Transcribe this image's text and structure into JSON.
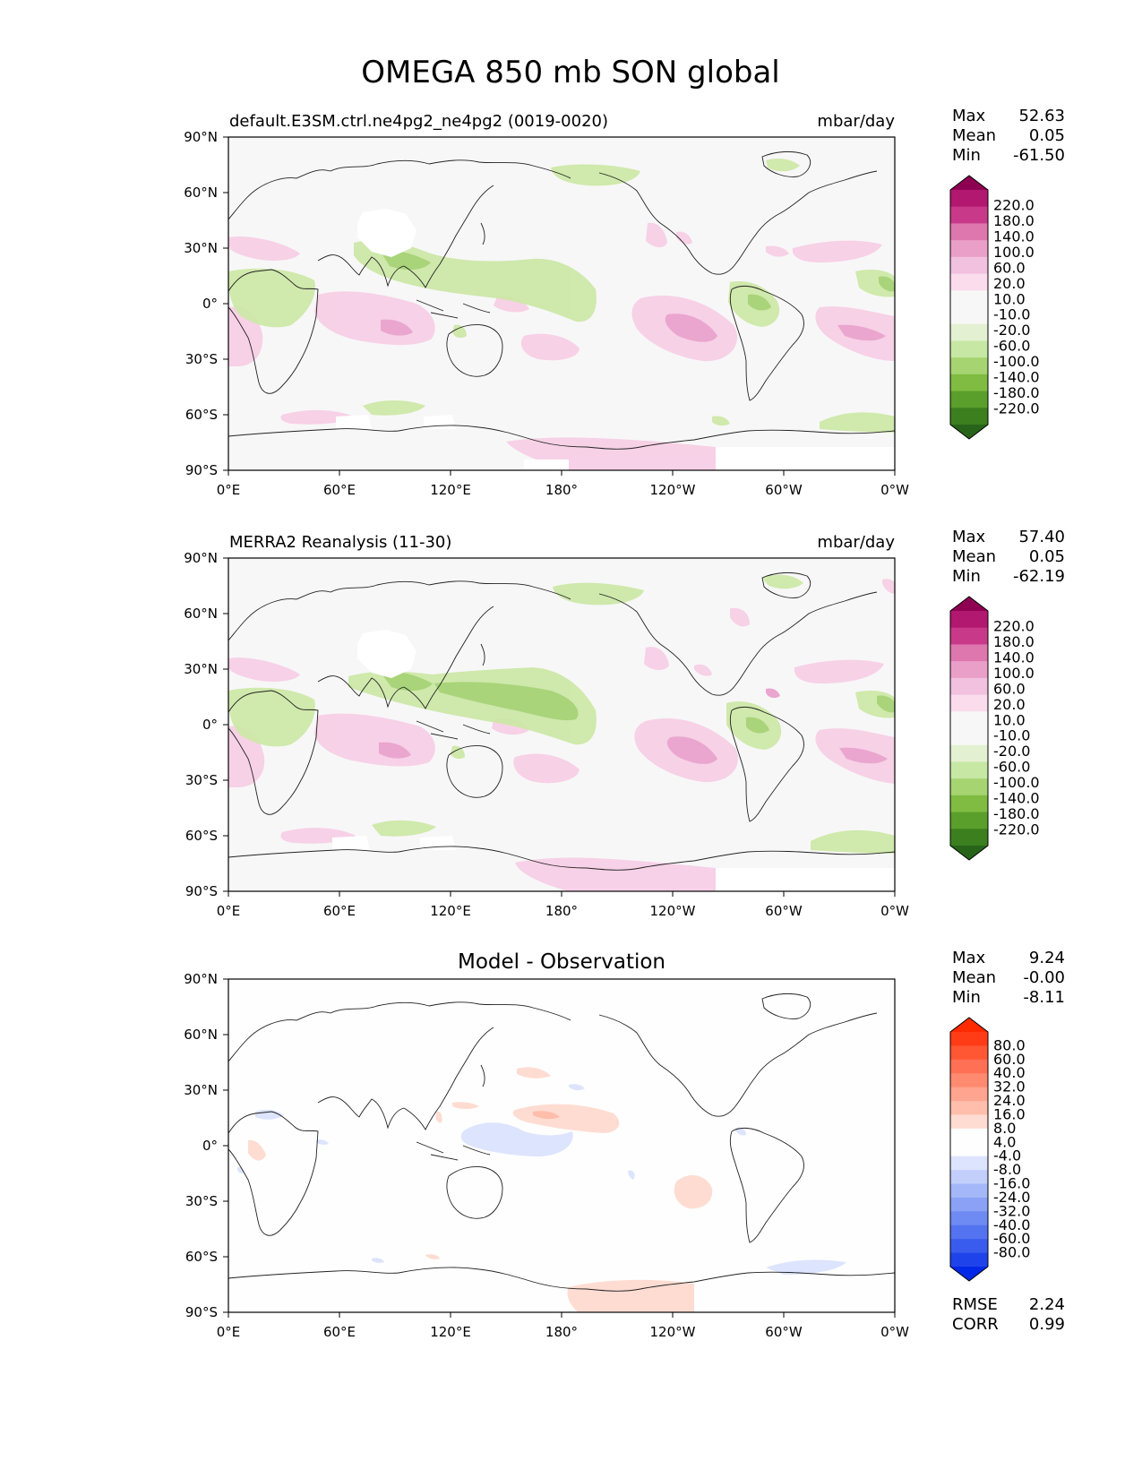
{
  "figure": {
    "title": "OMEGA 850 mb SON global"
  },
  "axes": {
    "lat_ticks": [
      "90°N",
      "60°N",
      "30°N",
      "0°",
      "30°S",
      "60°S",
      "90°S"
    ],
    "lon_ticks": [
      "0°E",
      "60°E",
      "120°E",
      "180°",
      "120°W",
      "60°W",
      "0°W"
    ]
  },
  "panels": [
    {
      "id": "test",
      "left_title": "default.E3SM.ctrl.ne4pg2_ne4pg2 (0019-0020)",
      "center_title": "",
      "units": "mbar/day",
      "stats": [
        {
          "label": "Max",
          "value": "52.63"
        },
        {
          "label": "Mean",
          "value": "0.05"
        },
        {
          "label": "Min",
          "value": "-61.50"
        }
      ],
      "colorbar": {
        "labels": [
          "220.0",
          "180.0",
          "140.0",
          "100.0",
          "60.0",
          "20.0",
          "10.0",
          "-10.0",
          "-20.0",
          "-60.0",
          "-100.0",
          "-140.0",
          "-180.0",
          "-220.0"
        ],
        "colors": [
          "#8e0152",
          "#b2186f",
          "#c9398a",
          "#de77ae",
          "#ea9fc9",
          "#f1c1df",
          "#fadcec",
          "#f7f7f7",
          "#f7f7f7",
          "#e3f1d2",
          "#c7e8a4",
          "#a5d471",
          "#7fbc41",
          "#5a9e2c",
          "#3b7f1e",
          "#276419"
        ]
      },
      "extra_stats": []
    },
    {
      "id": "reference",
      "left_title": "MERRA2 Reanalysis (11-30)",
      "center_title": "",
      "units": "mbar/day",
      "stats": [
        {
          "label": "Max",
          "value": "57.40"
        },
        {
          "label": "Mean",
          "value": "0.05"
        },
        {
          "label": "Min",
          "value": "-62.19"
        }
      ],
      "colorbar": {
        "labels": [
          "220.0",
          "180.0",
          "140.0",
          "100.0",
          "60.0",
          "20.0",
          "10.0",
          "-10.0",
          "-20.0",
          "-60.0",
          "-100.0",
          "-140.0",
          "-180.0",
          "-220.0"
        ],
        "colors": [
          "#8e0152",
          "#b2186f",
          "#c9398a",
          "#de77ae",
          "#ea9fc9",
          "#f1c1df",
          "#fadcec",
          "#f7f7f7",
          "#f7f7f7",
          "#e3f1d2",
          "#c7e8a4",
          "#a5d471",
          "#7fbc41",
          "#5a9e2c",
          "#3b7f1e",
          "#276419"
        ]
      },
      "extra_stats": []
    },
    {
      "id": "diff",
      "left_title": "",
      "center_title": "Model - Observation",
      "units": "",
      "stats": [
        {
          "label": "Max",
          "value": "9.24"
        },
        {
          "label": "Mean",
          "value": "-0.00"
        },
        {
          "label": "Min",
          "value": "-8.11"
        }
      ],
      "colorbar": {
        "labels": [
          "80.0",
          "60.0",
          "40.0",
          "32.0",
          "24.0",
          "16.0",
          "8.0",
          "4.0",
          "-4.0",
          "-8.0",
          "-16.0",
          "-24.0",
          "-32.0",
          "-40.0",
          "-60.0",
          "-80.0"
        ],
        "colors": [
          "#ff2a00",
          "#ff3c16",
          "#ff5634",
          "#ff7054",
          "#ff8a70",
          "#ffa48e",
          "#ffbeab",
          "#ffdcd2",
          "#fefefe",
          "#fefefe",
          "#dde4fd",
          "#c2cffb",
          "#a4b7f8",
          "#8aa1f6",
          "#6e8af3",
          "#5473f1",
          "#3a5cee",
          "#1f43eb",
          "#0028e6"
        ]
      },
      "extra_stats": [
        {
          "label": "RMSE",
          "value": "2.24"
        },
        {
          "label": "CORR",
          "value": "0.99"
        }
      ]
    }
  ]
}
